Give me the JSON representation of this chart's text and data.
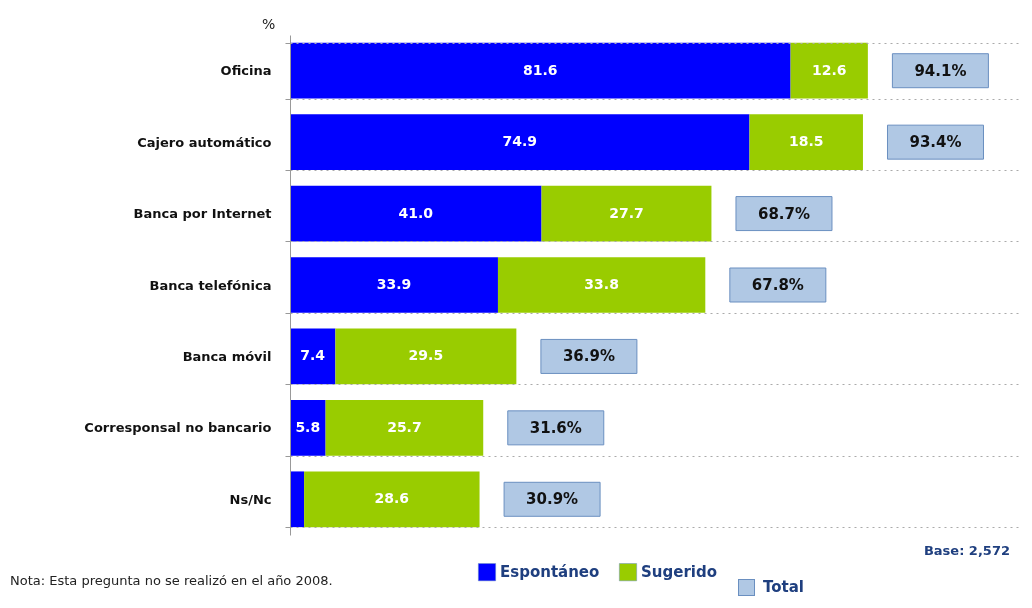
{
  "chart_data": {
    "type": "bar",
    "orientation": "horizontal",
    "stacked": true,
    "xlim": [
      0,
      119
    ],
    "categories": [
      "Oficina",
      "Cajero automático",
      "Banca por Internet",
      "Banca telefónica",
      "Banca móvil",
      "Corresponsal no bancario",
      "Ns/Nc"
    ],
    "series": [
      {
        "name": "Espontáneo",
        "color": "#0000ff",
        "values": [
          81.6,
          74.9,
          41.0,
          33.9,
          7.4,
          5.8,
          2.3
        ],
        "value_labels": [
          "81.6",
          "74.9",
          "41.0",
          "33.9",
          "7.4",
          "5.8",
          null
        ]
      },
      {
        "name": "Sugerido",
        "color": "#99cc00",
        "values": [
          12.6,
          18.5,
          27.7,
          33.8,
          29.5,
          25.7,
          28.6
        ],
        "value_labels": [
          "12.6",
          "18.5",
          "27.7",
          "33.8",
          "29.5",
          "25.7",
          "28.6"
        ]
      }
    ],
    "totals": [
      "94.1%",
      "93.4%",
      "68.7%",
      "67.8%",
      "36.9%",
      "31.6%",
      "30.9%"
    ],
    "annotations": [
      "%",
      "Base: 2,572",
      "Nota: Esta pregunta no se realizó en el año 2008.",
      "Total"
    ],
    "grid": "y",
    "legend": "bottom"
  }
}
